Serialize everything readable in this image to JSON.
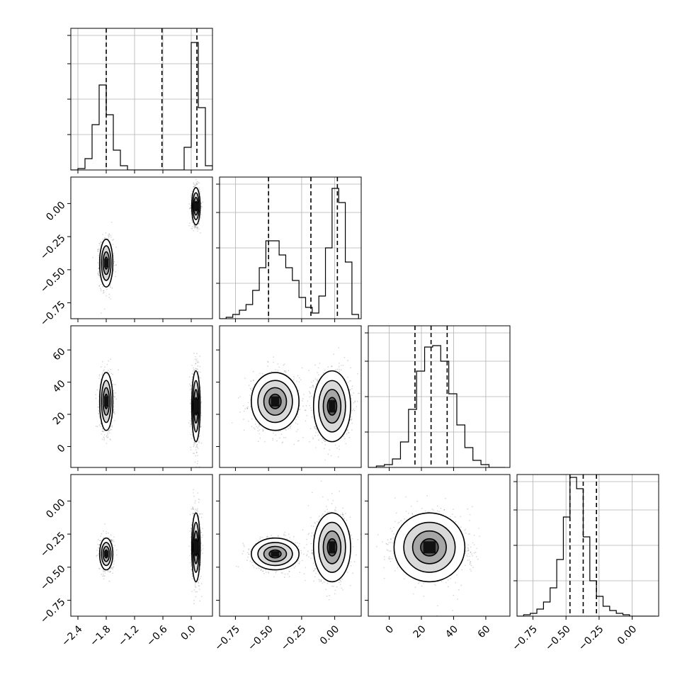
{
  "chart_data": {
    "type": "corner",
    "params": [
      {
        "range": [
          -2.55,
          0.45
        ],
        "ticks": [
          -2.4,
          -1.8,
          -1.2,
          -0.6,
          0.0
        ],
        "tick_labels": [
          "−2.4",
          "−1.8",
          "−1.2",
          "−0.6",
          "0.0"
        ],
        "quantiles": [
          -1.8,
          -0.62,
          0.12
        ],
        "hist": {
          "edges": [
            -2.55,
            -2.4,
            -2.25,
            -2.1,
            -1.95,
            -1.8,
            -1.65,
            -1.5,
            -1.35,
            -1.2,
            -1.05,
            -0.9,
            -0.75,
            -0.6,
            -0.45,
            -0.3,
            -0.15,
            0.0,
            0.15,
            0.3,
            0.45
          ],
          "counts": [
            0,
            1,
            8,
            32,
            60,
            39,
            14,
            3,
            0,
            0,
            0,
            0,
            0,
            0,
            0,
            0,
            16,
            90,
            44,
            3
          ]
        },
        "hist_ylim": [
          0,
          100
        ]
      },
      {
        "range": [
          -0.87,
          0.2
        ],
        "ticks": [
          -0.75,
          -0.5,
          -0.25,
          0.0
        ],
        "tick_labels": [
          "−0.75",
          "−0.50",
          "−0.25",
          "0.00"
        ],
        "quantiles": [
          -0.5,
          -0.18,
          0.02
        ],
        "hist": {
          "edges": [
            -0.87,
            -0.82,
            -0.77,
            -0.72,
            -0.67,
            -0.62,
            -0.57,
            -0.52,
            -0.47,
            -0.42,
            -0.37,
            -0.32,
            -0.27,
            -0.22,
            -0.17,
            -0.12,
            -0.07,
            -0.02,
            0.03,
            0.08,
            0.13,
            0.18
          ],
          "counts": [
            0,
            1,
            3,
            6,
            10,
            20,
            36,
            55,
            55,
            45,
            36,
            27,
            15,
            8,
            4,
            16,
            50,
            92,
            82,
            40,
            3
          ]
        },
        "hist_ylim": [
          0,
          100
        ]
      },
      {
        "range": [
          -13,
          75
        ],
        "ticks": [
          0,
          20,
          40,
          60
        ],
        "tick_labels": [
          "0",
          "20",
          "40",
          "60"
        ],
        "quantiles": [
          16,
          26,
          36
        ],
        "hist": {
          "edges": [
            -13,
            -8,
            -3,
            2,
            7,
            12,
            17,
            22,
            27,
            32,
            37,
            42,
            47,
            52,
            57,
            62,
            67,
            72
          ],
          "counts": [
            0,
            1,
            2,
            6,
            18,
            41,
            68,
            85,
            86,
            75,
            52,
            30,
            14,
            5,
            2,
            0,
            0
          ]
        },
        "hist_ylim": [
          0,
          100
        ]
      },
      {
        "range": [
          -0.87,
          0.2
        ],
        "ticks": [
          -0.75,
          -0.5,
          -0.25,
          0.0
        ],
        "tick_labels": [
          "−0.75",
          "−0.50",
          "−0.25",
          "0.00"
        ],
        "quantiles": [
          -0.47,
          -0.37,
          -0.27
        ],
        "hist": {
          "edges": [
            -0.87,
            -0.82,
            -0.77,
            -0.72,
            -0.67,
            -0.62,
            -0.57,
            -0.52,
            -0.47,
            -0.42,
            -0.37,
            -0.32,
            -0.27,
            -0.22,
            -0.17,
            -0.12,
            -0.07,
            -0.02,
            0.03,
            0.08,
            0.13,
            0.18
          ],
          "counts": [
            0,
            1,
            2,
            5,
            10,
            20,
            40,
            70,
            98,
            90,
            56,
            25,
            14,
            7,
            4,
            2,
            1,
            0,
            0,
            0,
            0
          ]
        },
        "hist_ylim": [
          0,
          100
        ]
      }
    ],
    "clusters": [
      {
        "center": [
          -1.8,
          -0.45,
          28,
          -0.4
        ],
        "sd": [
          0.07,
          0.09,
          9,
          0.06
        ],
        "weight": 0.5
      },
      {
        "center": [
          0.1,
          -0.02,
          25,
          -0.35
        ],
        "sd": [
          0.045,
          0.07,
          11,
          0.13
        ],
        "weight": 0.5
      }
    ],
    "grid": true,
    "xlabel": "",
    "ylabel": ""
  }
}
